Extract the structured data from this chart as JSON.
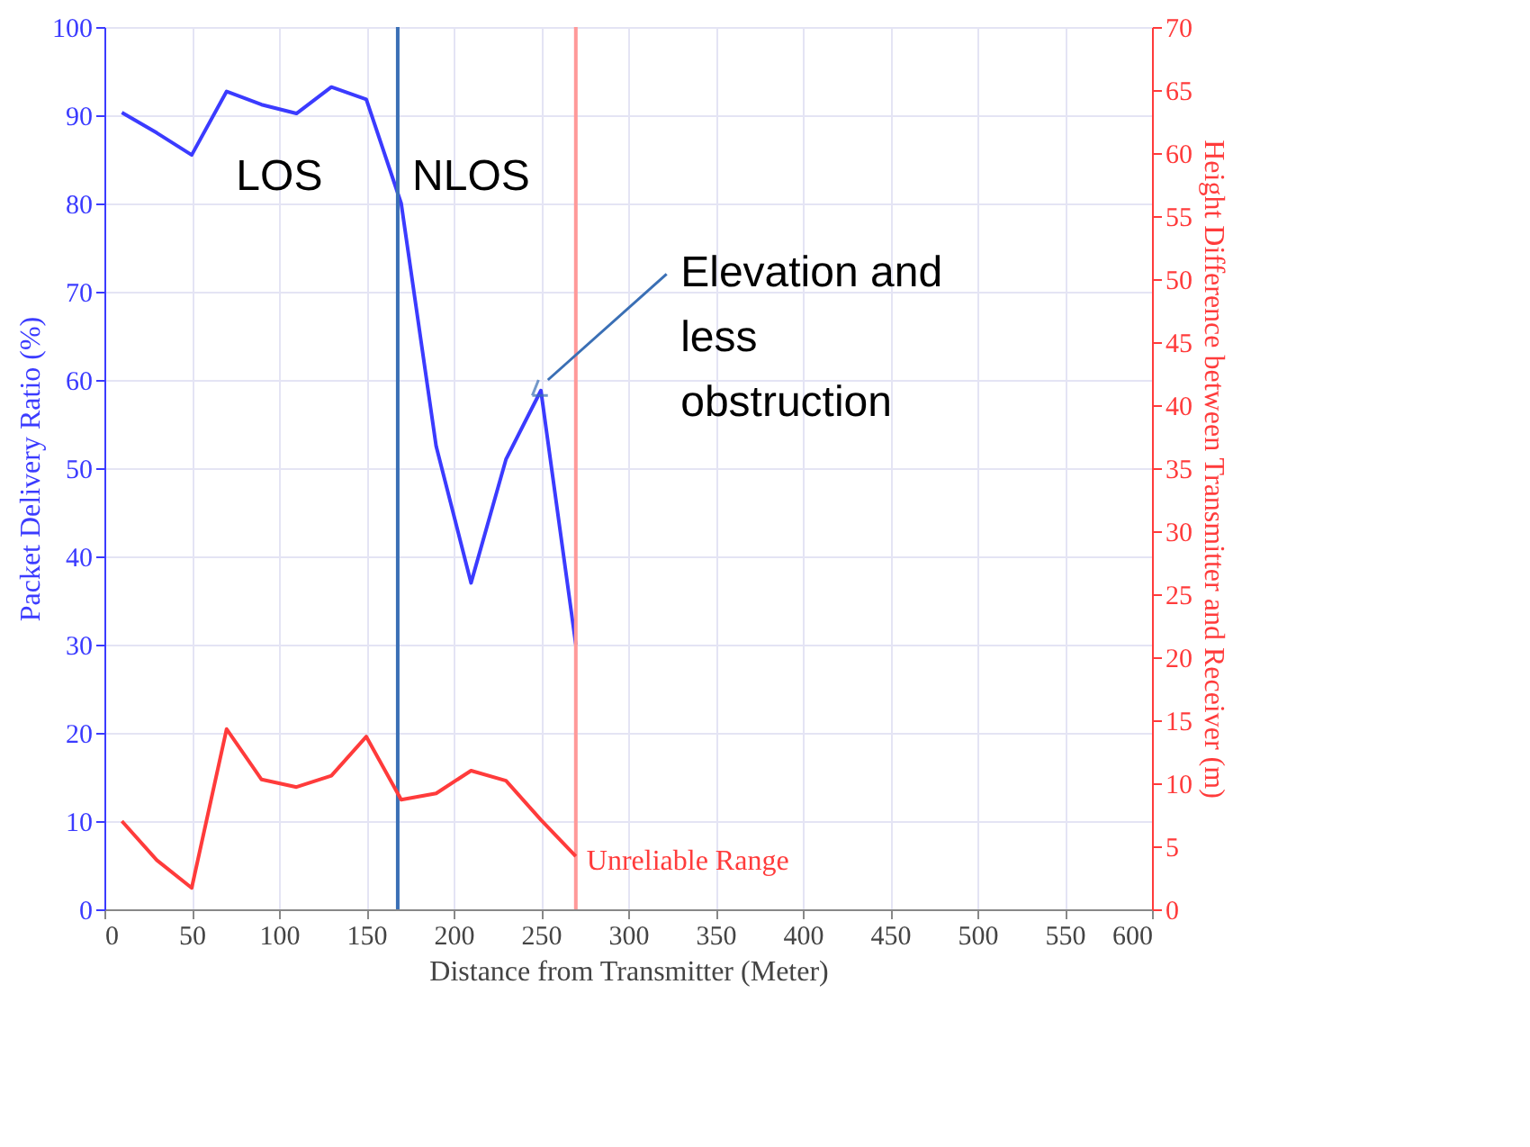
{
  "chart_data": {
    "type": "line",
    "xlabel": "Distance from Transmitter (Meter)",
    "ylabel": "Packet Delivery Ratio (%)",
    "y2label": "Height Difference between Transmitter and Receiver (m)",
    "x": [
      10,
      30,
      50,
      70,
      90,
      110,
      130,
      150,
      170,
      190,
      210,
      230,
      250,
      270
    ],
    "series": [
      {
        "color": "#3b3bff",
        "values": [
          90.3,
          88,
          85.5,
          92.7,
          91.2,
          90.2,
          93.2,
          91.8,
          80,
          52.5,
          37,
          51,
          58.8,
          30
        ]
      },
      {
        "color": "#ff3b3b",
        "axis": "y2",
        "values": [
          7,
          3.9,
          1.7,
          14.3,
          10.3,
          9.7,
          10.6,
          13.7,
          8.7,
          9.2,
          11,
          10.2,
          7.1,
          4.2
        ]
      }
    ],
    "xlim": [
      0,
      600
    ],
    "xticks": [
      0,
      50,
      100,
      150,
      200,
      250,
      300,
      350,
      400,
      450,
      500,
      550,
      600
    ],
    "ylim": [
      0,
      100
    ],
    "yticks": [
      0,
      10,
      20,
      30,
      40,
      50,
      60,
      70,
      80,
      90,
      100
    ],
    "y2lim": [
      0,
      70
    ],
    "y2ticks": [
      0,
      5,
      10,
      15,
      20,
      25,
      30,
      35,
      40,
      45,
      50,
      55,
      60,
      65,
      70
    ],
    "ref_lines": [
      {
        "axis": "x",
        "value": 270,
        "label": "Unreliable Range",
        "color": "#ff9999"
      },
      {
        "axis": "x",
        "value": 168,
        "color": "#3a6fb5"
      }
    ],
    "annotations": [
      "LOS",
      "NLOS",
      "Elevation  and less obstruction"
    ],
    "grid": true,
    "marker": "none",
    "line_style": "solid"
  }
}
